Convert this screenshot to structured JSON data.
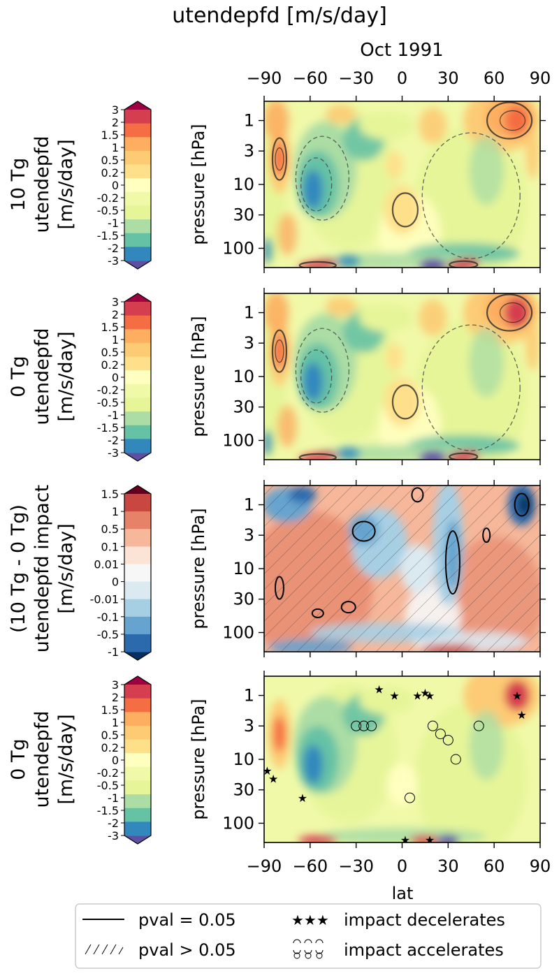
{
  "figure": {
    "title": "utendepfd [m/s/day]",
    "month": "Oct 1991"
  },
  "axes": {
    "xlabel": "lat",
    "ylabel": "pressure [hPa]",
    "xticks": [
      -90,
      -60,
      -30,
      0,
      30,
      60,
      90
    ],
    "xtick_labels": [
      "−90",
      "−60",
      "−30",
      "0",
      "30",
      "60",
      "90"
    ],
    "yticks": [
      1,
      3,
      10,
      30,
      100
    ],
    "ytick_labels": [
      "1",
      "3",
      "10",
      "30",
      "100"
    ],
    "xlim": [
      -90,
      90
    ],
    "ylim_hpa": [
      0.5,
      200
    ],
    "yscale": "log",
    "y_inverted": true
  },
  "colorbars": {
    "main": {
      "labels": [
        "3",
        "2",
        "1.5",
        "1",
        "0.5",
        "0.2",
        "0",
        "-0.2",
        "-0.5",
        "-1",
        "-1.5",
        "-2",
        "-3"
      ],
      "colors": [
        "#9e0142",
        "#d53e4f",
        "#f46d43",
        "#fdae61",
        "#fdcb74",
        "#fee08b",
        "#ffffbf",
        "#f0f9a8",
        "#e6f598",
        "#abdda4",
        "#66c2a5",
        "#3288bd",
        "#5e4fa2"
      ]
    },
    "diff": {
      "labels": [
        "1.5",
        "1",
        "0.5",
        "0.1",
        "0.01",
        "0",
        "-0.01",
        "-0.1",
        "-0.5",
        "-1"
      ],
      "colors": [
        "#67001f",
        "#c94741",
        "#e58267",
        "#f6b79a",
        "#fbe3d6",
        "#f7f7f7",
        "#dbe9f1",
        "#a7cfe4",
        "#66a4cf",
        "#2b6aad",
        "#053061"
      ]
    }
  },
  "panels": [
    {
      "row_label": [
        "10 Tg",
        "utendepfd",
        "[m/s/day]"
      ],
      "colorbar": "main",
      "kind": "main"
    },
    {
      "row_label": [
        "0 Tg",
        "utendepfd",
        "[m/s/day]"
      ],
      "colorbar": "main",
      "kind": "main"
    },
    {
      "row_label": [
        "(10 Tg - 0 Tg)",
        "utendepfd impact",
        "[m/s/day]"
      ],
      "colorbar": "diff",
      "kind": "diff"
    },
    {
      "row_label": [
        "0 Tg",
        "utendepfd",
        "[m/s/day]"
      ],
      "colorbar": "main",
      "kind": "markers"
    }
  ],
  "legend": {
    "items": [
      "pval = 0.05",
      "pval > 0.05",
      "impact decelerates",
      "impact accelerates"
    ]
  },
  "chart_data": [
    {
      "type": "heatmap",
      "title": "10 Tg",
      "xlabel": "lat",
      "ylabel": "pressure [hPa]",
      "colorbar_label": "utendepfd [m/s/day]",
      "features": [
        {
          "lat": -80,
          "p": 3,
          "value": 2
        },
        {
          "lat": -55,
          "p": 10,
          "value": -2
        },
        {
          "lat": 60,
          "p": 1,
          "value": 2
        },
        {
          "lat": 0,
          "p": 30,
          "value": 0.5
        },
        {
          "lat": 20,
          "p": 150,
          "value": -3
        }
      ]
    },
    {
      "type": "heatmap",
      "title": "0 Tg",
      "xlabel": "lat",
      "ylabel": "pressure [hPa]",
      "colorbar_label": "utendepfd [m/s/day]",
      "features": [
        {
          "lat": -80,
          "p": 3,
          "value": 2
        },
        {
          "lat": -55,
          "p": 10,
          "value": -2
        },
        {
          "lat": 75,
          "p": 1,
          "value": 3
        },
        {
          "lat": 0,
          "p": 20,
          "value": 0.5
        },
        {
          "lat": 20,
          "p": 150,
          "value": -3
        }
      ]
    },
    {
      "type": "heatmap",
      "title": "(10 Tg - 0 Tg)",
      "xlabel": "lat",
      "ylabel": "pressure [hPa]",
      "colorbar_label": "utendepfd impact [m/s/day]",
      "features": [
        {
          "lat": 75,
          "p": 1,
          "value": -1
        },
        {
          "lat": 30,
          "p": 5,
          "value": -0.5
        },
        {
          "lat": -20,
          "p": 3,
          "value": -0.5
        },
        {
          "lat": -60,
          "p": 20,
          "value": 0.1
        },
        {
          "lat": -75,
          "p": 1,
          "value": -1
        }
      ]
    },
    {
      "type": "heatmap",
      "title": "0 Tg",
      "xlabel": "lat",
      "ylabel": "pressure [hPa]",
      "colorbar_label": "utendepfd [m/s/day]",
      "features": [
        {
          "lat": -80,
          "p": 3,
          "value": 2
        },
        {
          "lat": -55,
          "p": 10,
          "value": -2
        },
        {
          "lat": 75,
          "p": 1,
          "value": 3
        },
        {
          "lat": 25,
          "p": 150,
          "value": -3
        }
      ],
      "markers_decelerates": [
        {
          "lat": -88,
          "p": 15
        },
        {
          "lat": -84,
          "p": 20
        },
        {
          "lat": -65,
          "p": 40
        },
        {
          "lat": -15,
          "p": 0.8
        },
        {
          "lat": -5,
          "p": 1
        },
        {
          "lat": 10,
          "p": 1
        },
        {
          "lat": 15,
          "p": 0.9
        },
        {
          "lat": 18,
          "p": 1
        },
        {
          "lat": 75,
          "p": 1
        },
        {
          "lat": 78,
          "p": 2
        },
        {
          "lat": 18,
          "p": 180
        },
        {
          "lat": 2,
          "p": 180
        }
      ],
      "markers_accelerates": [
        {
          "lat": -30,
          "p": 3
        },
        {
          "lat": -25,
          "p": 3
        },
        {
          "lat": -20,
          "p": 3
        },
        {
          "lat": 20,
          "p": 3
        },
        {
          "lat": 25,
          "p": 4
        },
        {
          "lat": 30,
          "p": 5
        },
        {
          "lat": 35,
          "p": 10
        },
        {
          "lat": 50,
          "p": 3
        },
        {
          "lat": 5,
          "p": 40
        }
      ]
    }
  ]
}
